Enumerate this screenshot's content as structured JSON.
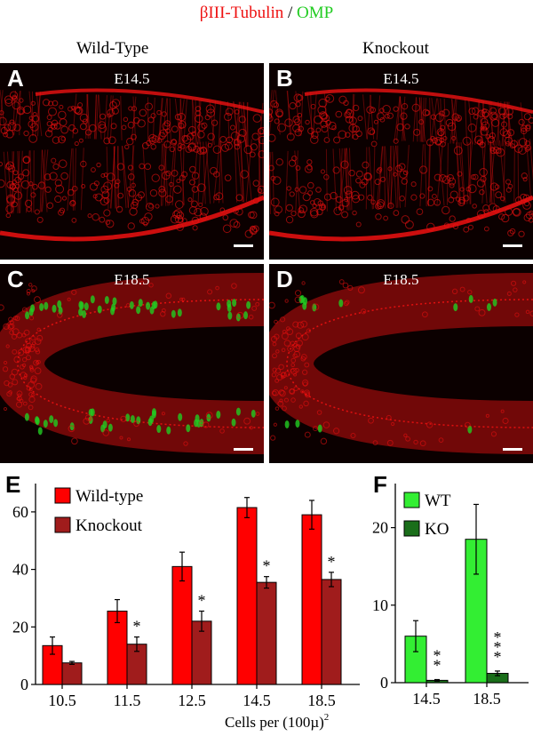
{
  "figure": {
    "title_red": "βIII-Tubulin",
    "title_sep": " / ",
    "title_green": "OMP",
    "col_left": "Wild-Type",
    "col_right": "Knockout",
    "colors": {
      "red": "#ee1111",
      "green": "#22cc22",
      "wt_bar": "#ff0000",
      "ko_bar": "#a01c1c",
      "wt_bar_f": "#33ee33",
      "ko_bar_f": "#1a6e1a"
    }
  },
  "panels": [
    {
      "letter": "A",
      "stage": "E14.5",
      "omp": false
    },
    {
      "letter": "B",
      "stage": "E14.5",
      "omp": false
    },
    {
      "letter": "C",
      "stage": "E18.5",
      "omp": true
    },
    {
      "letter": "D",
      "stage": "E18.5",
      "omp": true
    }
  ],
  "chart_data": [
    {
      "letter": "E",
      "type": "bar",
      "categories": [
        "10.5",
        "11.5",
        "12.5",
        "14.5",
        "18.5"
      ],
      "series": [
        {
          "name": "Wild-type",
          "values": [
            13.5,
            25.5,
            41,
            61.5,
            59
          ],
          "errors": [
            3,
            4,
            5,
            3.5,
            5
          ]
        },
        {
          "name": "Knockout",
          "values": [
            7.5,
            14,
            22,
            35.5,
            36.5
          ],
          "errors": [
            0.5,
            2.5,
            3.5,
            2,
            2.5
          ]
        }
      ],
      "significance": [
        "",
        "*",
        "*",
        "*",
        "*"
      ],
      "ylim": [
        0,
        68
      ],
      "yticks": [
        "0",
        "20",
        "40",
        "60"
      ],
      "xlabel": "Cells per (100µ)",
      "xlabel_sup": "2",
      "legend_position": "top-left"
    },
    {
      "letter": "F",
      "type": "bar",
      "categories": [
        "14.5",
        "18.5"
      ],
      "series": [
        {
          "name": "WT",
          "values": [
            6,
            18.5
          ],
          "errors": [
            2,
            4.5
          ]
        },
        {
          "name": "KO",
          "values": [
            0.3,
            1.2
          ],
          "errors": [
            0.1,
            0.3
          ]
        }
      ],
      "significance": [
        "**",
        "***"
      ],
      "ylim": [
        0,
        25
      ],
      "yticks": [
        "0",
        "10",
        "20"
      ],
      "legend_position": "top-left"
    }
  ]
}
